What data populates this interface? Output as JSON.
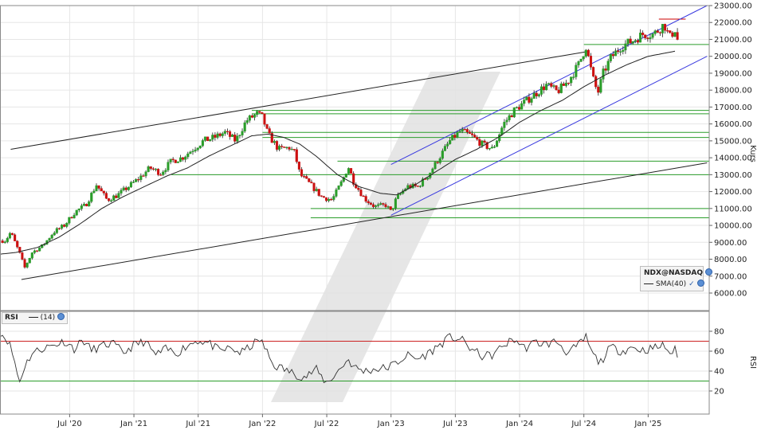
{
  "symbol": "NDX@NASDAQ",
  "sma_label": "SMA(40)",
  "rsi_label": "RSI",
  "rsi_period": "(14)",
  "chart_data": [
    {
      "type": "candlestick",
      "title": "",
      "ylabel": "Kurs",
      "ylim": [
        5000,
        23000
      ],
      "y_ticks": [
        "6000.00",
        "7000.00",
        "8000.00",
        "9000.00",
        "10000.00",
        "11000.00",
        "12000.00",
        "13000.00",
        "14000.00",
        "15000.00",
        "16000.00",
        "17000.00",
        "18000.00",
        "19000.00",
        "20000.00",
        "21000.00",
        "22000.00",
        "23000.00"
      ],
      "x_ticks": [
        "Jul '20",
        "Jan '21",
        "Jul '21",
        "Jan '22",
        "Jul '22",
        "Jan '23",
        "Jul '23",
        "Jan '24",
        "Jul '24",
        "Jan '25"
      ],
      "x_tick_months": [
        6,
        12,
        18,
        24,
        30,
        36,
        42,
        48,
        54,
        60
      ],
      "x_range_months": [
        -0.5,
        65.7
      ],
      "weekly_close_anchors": [
        [
          0,
          9100
        ],
        [
          0.5,
          9600
        ],
        [
          1.3,
          8400
        ],
        [
          1.8,
          7500
        ],
        [
          2.5,
          8400
        ],
        [
          3.5,
          8800
        ],
        [
          4.5,
          9600
        ],
        [
          5.5,
          10000
        ],
        [
          6.5,
          10800
        ],
        [
          7.5,
          11200
        ],
        [
          8.5,
          12400
        ],
        [
          9.5,
          11500
        ],
        [
          10.5,
          11800
        ],
        [
          11.5,
          12300
        ],
        [
          12.5,
          12800
        ],
        [
          13.5,
          13400
        ],
        [
          14.5,
          13100
        ],
        [
          15.5,
          13800
        ],
        [
          16.5,
          14000
        ],
        [
          17.5,
          14500
        ],
        [
          18.5,
          15000
        ],
        [
          19.5,
          15200
        ],
        [
          20.5,
          15500
        ],
        [
          21.5,
          15000
        ],
        [
          22.5,
          16200
        ],
        [
          23.5,
          16600
        ],
        [
          24,
          16400
        ],
        [
          24.5,
          15400
        ],
        [
          25.5,
          14500
        ],
        [
          26.5,
          14600
        ],
        [
          27,
          14300
        ],
        [
          27.5,
          13000
        ],
        [
          28.5,
          12400
        ],
        [
          29.5,
          11700
        ],
        [
          30.5,
          11500
        ],
        [
          31.5,
          12700
        ],
        [
          32,
          13500
        ],
        [
          32.5,
          12600
        ],
        [
          33.5,
          11600
        ],
        [
          34.5,
          11100
        ],
        [
          35.5,
          11200
        ],
        [
          36,
          10800
        ],
        [
          36.5,
          11600
        ],
        [
          37.5,
          12300
        ],
        [
          38.5,
          12300
        ],
        [
          39.5,
          13000
        ],
        [
          40.5,
          14000
        ],
        [
          41.5,
          15000
        ],
        [
          42.5,
          15600
        ],
        [
          43.5,
          15300
        ],
        [
          44.5,
          14800
        ],
        [
          45.5,
          14500
        ],
        [
          46.5,
          16000
        ],
        [
          47.5,
          16800
        ],
        [
          48.5,
          17300
        ],
        [
          49.5,
          17800
        ],
        [
          50.5,
          18300
        ],
        [
          51.5,
          17900
        ],
        [
          52.5,
          18500
        ],
        [
          53.5,
          19500
        ],
        [
          54.2,
          20600
        ],
        [
          54.8,
          18800
        ],
        [
          55.3,
          17800
        ],
        [
          55.8,
          19000
        ],
        [
          56.5,
          19900
        ],
        [
          57.5,
          20600
        ],
        [
          58.5,
          20900
        ],
        [
          59.5,
          21300
        ],
        [
          60.5,
          21300
        ],
        [
          61.5,
          21900
        ],
        [
          62,
          21100
        ],
        [
          62.5,
          21600
        ],
        [
          62.8,
          20800
        ]
      ],
      "sma_label": "SMA(40)",
      "sma40_anchors": [
        [
          -0.5,
          8300
        ],
        [
          1,
          8400
        ],
        [
          3,
          8700
        ],
        [
          5,
          9300
        ],
        [
          7,
          10100
        ],
        [
          9,
          11000
        ],
        [
          11,
          11700
        ],
        [
          13,
          12300
        ],
        [
          15,
          12900
        ],
        [
          17,
          13400
        ],
        [
          19,
          14100
        ],
        [
          21,
          14700
        ],
        [
          23,
          15300
        ],
        [
          24.5,
          15400
        ],
        [
          26,
          15200
        ],
        [
          27.5,
          14800
        ],
        [
          29,
          14100
        ],
        [
          31,
          13000
        ],
        [
          33,
          12300
        ],
        [
          35,
          11900
        ],
        [
          36.5,
          11800
        ],
        [
          38,
          12300
        ],
        [
          40,
          13100
        ],
        [
          42,
          13900
        ],
        [
          44,
          14500
        ],
        [
          46,
          15200
        ],
        [
          48,
          16100
        ],
        [
          50,
          16800
        ],
        [
          52,
          17400
        ],
        [
          54,
          18200
        ],
        [
          56,
          18900
        ],
        [
          58,
          19500
        ],
        [
          60,
          20000
        ],
        [
          62.5,
          20300
        ]
      ],
      "trendlines": [
        {
          "name": "long-term-upper",
          "from": [
            0.5,
            14500
          ],
          "to": [
            54.5,
            20300
          ],
          "color": "#222222"
        },
        {
          "name": "long-term-lower",
          "from": [
            1.5,
            6800
          ],
          "to": [
            65.5,
            13700
          ],
          "color": "#222222"
        },
        {
          "name": "channel-upper",
          "from": [
            36,
            13600
          ],
          "to": [
            65.5,
            23000
          ],
          "color": "#3a3adf"
        },
        {
          "name": "channel-lower",
          "from": [
            36,
            10600
          ],
          "to": [
            65.5,
            20000
          ],
          "color": "#3a3adf"
        }
      ],
      "horizontal_levels": [
        {
          "value": 22200,
          "from": 61,
          "to": 63.5,
          "color": "#cc0000"
        },
        {
          "value": 20700,
          "from": 54,
          "to": 65.7,
          "color": "#2a9d2a"
        },
        {
          "value": 16800,
          "from": 23,
          "to": 65.7,
          "color": "#2a9d2a"
        },
        {
          "value": 16600,
          "from": 23,
          "to": 65.7,
          "color": "#2a9d2a"
        },
        {
          "value": 15500,
          "from": 24,
          "to": 65.7,
          "color": "#2a9d2a"
        },
        {
          "value": 15200,
          "from": 24,
          "to": 65.7,
          "color": "#2a9d2a"
        },
        {
          "value": 13800,
          "from": 31,
          "to": 65.7,
          "color": "#2a9d2a"
        },
        {
          "value": 13000,
          "from": 15.5,
          "to": 65.7,
          "color": "#2a9d2a"
        },
        {
          "value": 11000,
          "from": 28.5,
          "to": 65.7,
          "color": "#2a9d2a"
        },
        {
          "value": 10450,
          "from": 28.5,
          "to": 65.7,
          "color": "#2a9d2a"
        }
      ],
      "up_color": "#2a9d2a",
      "down_color": "#cc1111",
      "grid": true
    },
    {
      "type": "line",
      "title": "",
      "ylabel": "RSI",
      "ylim": [
        0,
        100
      ],
      "y_ticks": [
        20,
        40,
        60,
        80
      ],
      "levels": [
        {
          "value": 70,
          "color": "#cc2222"
        },
        {
          "value": 30,
          "color": "#2a9d2a"
        }
      ],
      "rsi_anchors": [
        [
          -0.5,
          79
        ],
        [
          0.3,
          70
        ],
        [
          0.8,
          53
        ],
        [
          1.3,
          28
        ],
        [
          1.8,
          45
        ],
        [
          2.5,
          58
        ],
        [
          3.5,
          63
        ],
        [
          4.5,
          66
        ],
        [
          5.5,
          70
        ],
        [
          6.5,
          62
        ],
        [
          7.2,
          72
        ],
        [
          8,
          61
        ],
        [
          9,
          65
        ],
        [
          10,
          68
        ],
        [
          11,
          58
        ],
        [
          12,
          66
        ],
        [
          13,
          70
        ],
        [
          14,
          56
        ],
        [
          15,
          62
        ],
        [
          16,
          58
        ],
        [
          17,
          66
        ],
        [
          18,
          71
        ],
        [
          19,
          68
        ],
        [
          20,
          60
        ],
        [
          21,
          63
        ],
        [
          22,
          58
        ],
        [
          23,
          66
        ],
        [
          23.8,
          72
        ],
        [
          24.5,
          57
        ],
        [
          25,
          46
        ],
        [
          26,
          42
        ],
        [
          27,
          37
        ],
        [
          28,
          34
        ],
        [
          29,
          42
        ],
        [
          29.5,
          34
        ],
        [
          30,
          28
        ],
        [
          31,
          39
        ],
        [
          32,
          52
        ],
        [
          32.5,
          44
        ],
        [
          33.5,
          40
        ],
        [
          34.5,
          42
        ],
        [
          35.5,
          43
        ],
        [
          36.5,
          48
        ],
        [
          37.5,
          56
        ],
        [
          38.5,
          52
        ],
        [
          39.5,
          58
        ],
        [
          40.5,
          66
        ],
        [
          41.5,
          74
        ],
        [
          42.5,
          72
        ],
        [
          43.5,
          62
        ],
        [
          44.5,
          55
        ],
        [
          45.5,
          56
        ],
        [
          46.5,
          66
        ],
        [
          47.5,
          72
        ],
        [
          48.5,
          63
        ],
        [
          49.5,
          69
        ],
        [
          50.5,
          67
        ],
        [
          51.5,
          70
        ],
        [
          52.5,
          58
        ],
        [
          53.5,
          66
        ],
        [
          54.2,
          74
        ],
        [
          54.8,
          57
        ],
        [
          55.5,
          48
        ],
        [
          56.5,
          64
        ],
        [
          57.5,
          60
        ],
        [
          58.5,
          64
        ],
        [
          59.5,
          61
        ],
        [
          60.5,
          63
        ],
        [
          61.5,
          66
        ],
        [
          62,
          58
        ],
        [
          62.5,
          61
        ],
        [
          62.8,
          50
        ]
      ],
      "line_color": "#333333",
      "grid": true
    }
  ]
}
